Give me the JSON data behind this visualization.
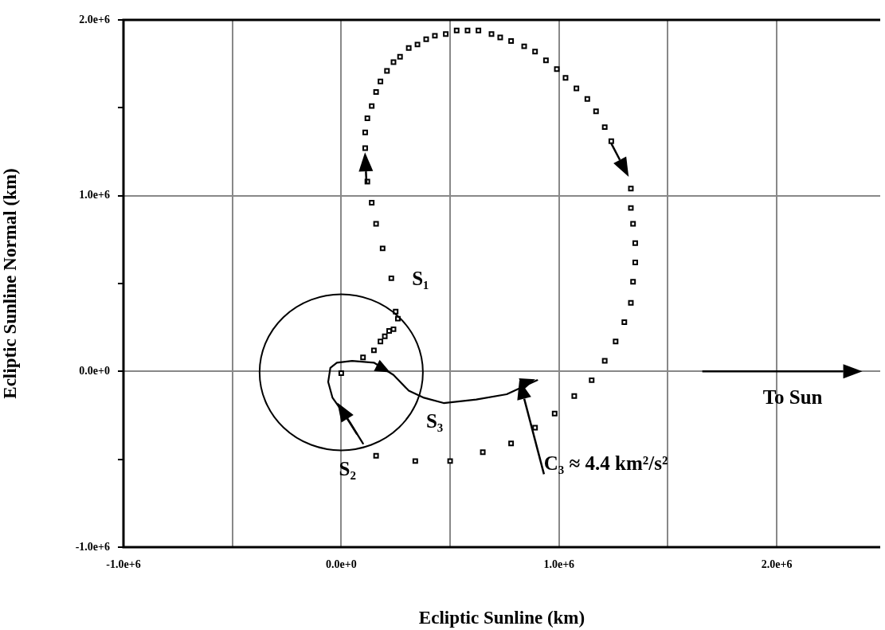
{
  "chart_data": {
    "type": "scatter",
    "xlabel": "Ecliptic Sunline (km)",
    "ylabel": "Ecliptic Sunline Normal (km)",
    "xlim": [
      -1000000,
      2475000
    ],
    "ylim": [
      -1000000,
      2000000
    ],
    "xticks": [
      {
        "value": -1000000,
        "label": "-1.0e+6"
      },
      {
        "value": -500000,
        "label": null
      },
      {
        "value": 0,
        "label": "0.0e+0"
      },
      {
        "value": 500000,
        "label": null
      },
      {
        "value": 1000000,
        "label": "1.0e+6"
      },
      {
        "value": 1500000,
        "label": null
      },
      {
        "value": 2000000,
        "label": "2.0e+6"
      }
    ],
    "yticks": [
      {
        "value": -1000000,
        "label": "-1.0e+6"
      },
      {
        "value": -500000,
        "label": null
      },
      {
        "value": 0,
        "label": "0.0e+0"
      },
      {
        "value": 500000,
        "label": null
      },
      {
        "value": 1000000,
        "label": "1.0e+6"
      },
      {
        "value": 1500000,
        "label": null
      },
      {
        "value": 2000000,
        "label": "2.0e+6"
      }
    ],
    "grid": true,
    "legend": false,
    "marker": "square",
    "series": [
      {
        "color": "#000000",
        "x": [
          0,
          100000,
          150000,
          180000,
          200000,
          220000,
          240000,
          260000,
          250000,
          230000,
          190000,
          160000,
          140000,
          120000,
          110000,
          110000,
          120000,
          140000,
          160000,
          180000,
          210000,
          240000,
          270000,
          310000,
          350000,
          390000,
          430000,
          480000,
          530000,
          580000,
          630000,
          690000,
          730000,
          780000,
          840000,
          890000,
          940000,
          990000,
          1030000,
          1080000,
          1130000,
          1170000,
          1210000,
          1240000,
          1330000,
          1330000,
          1340000,
          1350000,
          1350000,
          1340000,
          1330000,
          1300000,
          1260000,
          1210000,
          1150000,
          1070000,
          980000,
          890000,
          780000,
          650000,
          500000,
          340000,
          160000
        ],
        "values": [
          -10000,
          80000,
          120000,
          170000,
          200000,
          230000,
          240000,
          300000,
          340000,
          530000,
          700000,
          840000,
          960000,
          1080000,
          1270000,
          1360000,
          1440000,
          1510000,
          1590000,
          1650000,
          1710000,
          1760000,
          1790000,
          1840000,
          1860000,
          1890000,
          1910000,
          1920000,
          1940000,
          1940000,
          1940000,
          1920000,
          1900000,
          1880000,
          1850000,
          1820000,
          1770000,
          1720000,
          1670000,
          1610000,
          1550000,
          1480000,
          1390000,
          1310000,
          1040000,
          930000,
          840000,
          730000,
          620000,
          510000,
          390000,
          280000,
          170000,
          60000,
          -50000,
          -140000,
          -240000,
          -320000,
          -410000,
          -460000,
          -510000,
          -510000,
          -480000
        ]
      },
      {
        "type": "line",
        "color": "#000000",
        "marker": "none",
        "line_style": "solid",
        "x": [
          100000,
          40000,
          -40000,
          -60000,
          -50000,
          -20000,
          50000,
          150000,
          240000,
          310000,
          380000,
          470000,
          620000,
          760000,
          900000
        ],
        "values": [
          -410000,
          -290000,
          -150000,
          -60000,
          20000,
          50000,
          60000,
          50000,
          -20000,
          -110000,
          -150000,
          -180000,
          -160000,
          -130000,
          -50000
        ]
      }
    ],
    "annotations": [
      "S₁",
      "S₂",
      "S₃",
      "C₃ ≈ 4.4 km²/s²",
      "To Sun"
    ]
  }
}
